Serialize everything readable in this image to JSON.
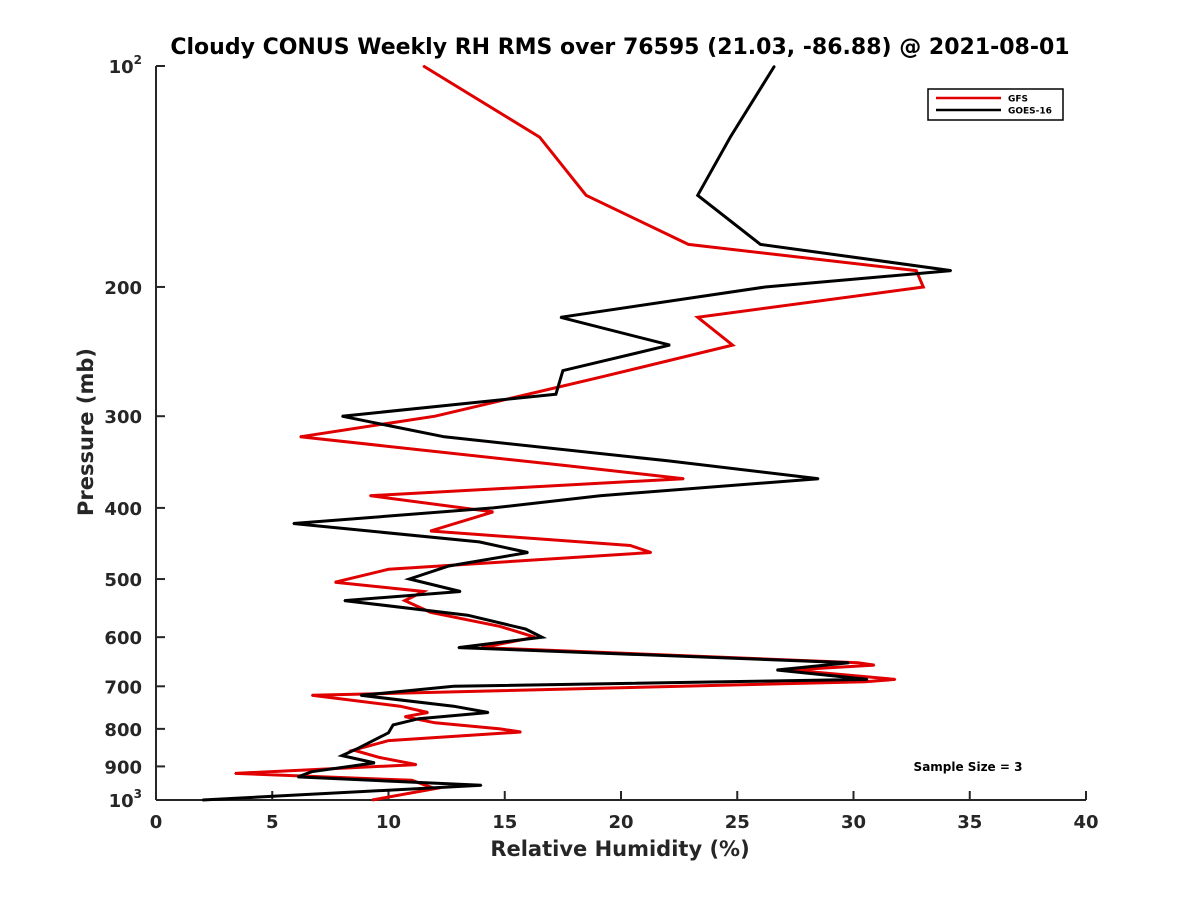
{
  "chart_data": {
    "type": "line",
    "title": "Cloudy CONUS Weekly RH RMS over 76595 (21.03, -86.88) @ 2021-08-01",
    "xlabel": "Relative Humidity (%)",
    "ylabel": "Pressure (mb)",
    "xlim": [
      0,
      40
    ],
    "ylim": [
      100,
      1000
    ],
    "yscale": "log",
    "yreversed": true,
    "x_ticks": [
      0,
      5,
      10,
      15,
      20,
      25,
      30,
      35,
      40
    ],
    "x_tick_labels": [
      "0",
      "5",
      "10",
      "15",
      "20",
      "25",
      "30",
      "35",
      "40"
    ],
    "y_ticks": [
      {
        "value": 100,
        "base": "10",
        "exp": "2"
      },
      {
        "value": 200,
        "label": "200"
      },
      {
        "value": 300,
        "label": "300"
      },
      {
        "value": 400,
        "label": "400"
      },
      {
        "value": 500,
        "label": "500"
      },
      {
        "value": 600,
        "label": "600"
      },
      {
        "value": 700,
        "label": "700"
      },
      {
        "value": 800,
        "label": "800"
      },
      {
        "value": 900,
        "label": "900"
      },
      {
        "value": 1000,
        "base": "10",
        "exp": "3"
      }
    ],
    "legend_position": "top-right",
    "annotation": "Sample Size = 3",
    "series": [
      {
        "name": "GFS",
        "color": "#e00000",
        "points": [
          [
            11.5,
            100
          ],
          [
            16.5,
            125
          ],
          [
            18.5,
            150
          ],
          [
            22.9,
            175
          ],
          [
            32.7,
            190
          ],
          [
            33.0,
            200
          ],
          [
            23.3,
            220
          ],
          [
            24.8,
            240
          ],
          [
            19.2,
            265
          ],
          [
            12.0,
            300
          ],
          [
            6.2,
            320
          ],
          [
            17.5,
            350
          ],
          [
            22.7,
            365
          ],
          [
            9.2,
            385
          ],
          [
            14.5,
            405
          ],
          [
            11.8,
            430
          ],
          [
            20.4,
            450
          ],
          [
            21.3,
            460
          ],
          [
            10.0,
            485
          ],
          [
            7.7,
            505
          ],
          [
            11.5,
            520
          ],
          [
            10.7,
            535
          ],
          [
            11.8,
            555
          ],
          [
            14.8,
            580
          ],
          [
            16.3,
            600
          ],
          [
            14.0,
            620
          ],
          [
            30.2,
            650
          ],
          [
            30.9,
            655
          ],
          [
            27.3,
            665
          ],
          [
            31.8,
            685
          ],
          [
            30.5,
            690
          ],
          [
            6.7,
            720
          ],
          [
            10.5,
            745
          ],
          [
            11.7,
            760
          ],
          [
            10.7,
            770
          ],
          [
            12.0,
            785
          ],
          [
            14.8,
            800
          ],
          [
            15.7,
            808
          ],
          [
            10.0,
            830
          ],
          [
            8.5,
            855
          ],
          [
            9.6,
            875
          ],
          [
            11.2,
            895
          ],
          [
            3.4,
            920
          ],
          [
            11.0,
            940
          ],
          [
            12.0,
            965
          ],
          [
            9.3,
            1000
          ]
        ]
      },
      {
        "name": "GOES-16",
        "color": "#000000",
        "points": [
          [
            26.6,
            100
          ],
          [
            24.7,
            125
          ],
          [
            23.3,
            150
          ],
          [
            26.0,
            175
          ],
          [
            34.2,
            190
          ],
          [
            26.2,
            200
          ],
          [
            17.4,
            220
          ],
          [
            22.1,
            240
          ],
          [
            17.5,
            260
          ],
          [
            17.2,
            280
          ],
          [
            8.0,
            300
          ],
          [
            12.4,
            320
          ],
          [
            22.0,
            345
          ],
          [
            28.5,
            365
          ],
          [
            19.1,
            385
          ],
          [
            14.5,
            400
          ],
          [
            5.9,
            420
          ],
          [
            13.9,
            445
          ],
          [
            16.0,
            460
          ],
          [
            12.6,
            480
          ],
          [
            10.9,
            500
          ],
          [
            13.1,
            520
          ],
          [
            8.1,
            535
          ],
          [
            13.4,
            560
          ],
          [
            15.9,
            585
          ],
          [
            16.6,
            600
          ],
          [
            13.0,
            620
          ],
          [
            29.8,
            650
          ],
          [
            26.7,
            665
          ],
          [
            30.6,
            685
          ],
          [
            12.8,
            700
          ],
          [
            8.8,
            720
          ],
          [
            12.8,
            745
          ],
          [
            14.3,
            760
          ],
          [
            11.3,
            775
          ],
          [
            10.2,
            790
          ],
          [
            10.0,
            810
          ],
          [
            8.7,
            850
          ],
          [
            8.0,
            870
          ],
          [
            9.4,
            890
          ],
          [
            6.7,
            915
          ],
          [
            6.1,
            930
          ],
          [
            14.0,
            955
          ],
          [
            2.0,
            1000
          ]
        ]
      }
    ]
  }
}
